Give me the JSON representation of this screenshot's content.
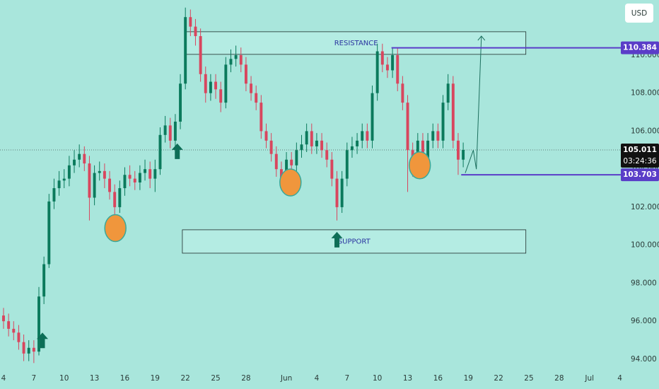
{
  "chart_data": {
    "type": "candlestick",
    "currency": "USD",
    "x": [
      0,
      0.5,
      1,
      1.5,
      2,
      2.5,
      3,
      3.5,
      4,
      4.5,
      5,
      5.5,
      6,
      6.5,
      7,
      7.5,
      8,
      8.5,
      9,
      9.5,
      10,
      10.5,
      11,
      11.5,
      12,
      12.5,
      13,
      13.5,
      14,
      14.5,
      15,
      15.5,
      16,
      16.5,
      17,
      17.5,
      18,
      18.5,
      19,
      19.5,
      20,
      20.5,
      21,
      21.5,
      22,
      22.5,
      23,
      23.5,
      24,
      24.5,
      25,
      25.5,
      26,
      26.5,
      27,
      27.5,
      28,
      28.5,
      29,
      29.5,
      30,
      30.5,
      31,
      31.5,
      32,
      32.5,
      33,
      33.5,
      34,
      34.5,
      35,
      35.5,
      36,
      36.5,
      37,
      37.5,
      38,
      38.5,
      39,
      39.5,
      40,
      40.5,
      41,
      41.5,
      42,
      42.5,
      43,
      43.5,
      44,
      44.5,
      45,
      45.5
    ],
    "open": [
      96.3,
      96.0,
      95.6,
      95.4,
      94.9,
      94.3,
      94.6,
      94.4,
      97.3,
      99.0,
      102.3,
      103.0,
      103.4,
      103.5,
      104.2,
      104.5,
      104.8,
      104.3,
      102.5,
      103.8,
      103.9,
      103.5,
      102.8,
      102.0,
      103.0,
      103.7,
      103.5,
      103.3,
      103.8,
      104.0,
      103.5,
      104.0,
      105.8,
      106.3,
      105.5,
      106.5,
      108.5,
      112.0,
      111.5,
      111.0,
      109.0,
      108.0,
      108.6,
      108.2,
      107.5,
      109.5,
      109.8,
      110.0,
      109.5,
      108.5,
      108.0,
      107.5,
      106.0,
      105.5,
      104.8,
      104.0,
      103.5,
      104.5,
      104.2,
      105.0,
      105.3,
      106.0,
      105.2,
      105.5,
      105.0,
      104.5,
      103.5,
      102.0,
      103.5,
      105.0,
      105.2,
      105.5,
      106.0,
      105.5,
      108.0,
      110.2,
      109.5,
      109.2,
      110.0,
      108.5,
      107.5,
      105.0,
      104.0,
      105.5,
      104.5,
      105.5,
      106.0,
      105.5,
      107.5,
      108.5,
      105.5,
      104.5
    ],
    "high": [
      96.7,
      96.4,
      96.0,
      95.8,
      95.3,
      95.0,
      95.0,
      97.8,
      99.4,
      102.7,
      103.5,
      103.9,
      104.0,
      104.7,
      105.0,
      105.3,
      105.2,
      104.7,
      104.2,
      104.4,
      104.3,
      103.9,
      103.2,
      103.4,
      104.1,
      104.2,
      103.9,
      104.2,
      104.5,
      104.4,
      104.5,
      106.2,
      106.8,
      106.7,
      106.9,
      109.0,
      112.5,
      112.4,
      111.9,
      111.4,
      109.4,
      109.0,
      109.0,
      108.6,
      109.9,
      110.3,
      110.5,
      110.4,
      109.9,
      108.9,
      108.4,
      107.9,
      106.4,
      105.9,
      105.2,
      104.4,
      104.9,
      104.9,
      105.4,
      105.8,
      106.4,
      106.4,
      105.9,
      105.9,
      105.4,
      104.9,
      103.9,
      103.9,
      105.4,
      105.7,
      105.9,
      106.4,
      106.4,
      108.4,
      110.6,
      110.6,
      109.9,
      110.4,
      110.4,
      108.9,
      107.9,
      105.4,
      105.9,
      105.9,
      105.9,
      106.4,
      106.4,
      107.9,
      109.0,
      108.9,
      105.9,
      105.4
    ],
    "low": [
      95.6,
      95.2,
      95.0,
      94.5,
      93.9,
      93.9,
      93.8,
      94.2,
      96.9,
      98.8,
      101.9,
      102.6,
      103.0,
      103.1,
      103.8,
      104.1,
      103.9,
      101.3,
      102.1,
      103.4,
      103.0,
      102.4,
      101.3,
      101.7,
      102.6,
      103.1,
      102.9,
      102.9,
      103.4,
      103.0,
      102.8,
      103.7,
      105.4,
      105.1,
      105.1,
      106.1,
      108.2,
      111.0,
      110.5,
      108.6,
      107.5,
      107.6,
      107.7,
      107.0,
      107.2,
      109.1,
      109.4,
      109.1,
      108.1,
      107.6,
      107.1,
      105.6,
      105.1,
      104.4,
      103.6,
      103.0,
      103.1,
      103.8,
      103.8,
      104.6,
      104.9,
      104.8,
      104.8,
      104.6,
      104.1,
      103.1,
      101.3,
      101.7,
      103.1,
      104.6,
      104.8,
      105.1,
      105.1,
      105.1,
      107.6,
      109.1,
      108.8,
      108.8,
      108.1,
      107.1,
      102.8,
      103.6,
      103.6,
      104.1,
      104.1,
      105.1,
      105.1,
      105.1,
      107.1,
      105.1,
      103.7,
      104.1
    ],
    "close": [
      96.0,
      95.6,
      95.4,
      94.9,
      94.3,
      94.6,
      94.4,
      97.3,
      99.0,
      102.3,
      103.0,
      103.4,
      103.5,
      104.2,
      104.5,
      104.8,
      104.3,
      102.5,
      103.8,
      103.9,
      103.5,
      102.8,
      102.0,
      103.0,
      103.7,
      103.5,
      103.3,
      103.8,
      104.0,
      103.5,
      104.0,
      105.8,
      106.3,
      105.5,
      106.5,
      108.5,
      112.0,
      111.5,
      111.0,
      109.0,
      108.0,
      108.6,
      108.2,
      107.5,
      109.5,
      109.8,
      110.0,
      109.5,
      108.5,
      108.0,
      107.5,
      106.0,
      105.5,
      104.8,
      104.0,
      103.5,
      104.5,
      104.2,
      105.0,
      105.3,
      106.0,
      105.2,
      105.5,
      105.0,
      104.5,
      103.5,
      102.0,
      103.5,
      105.0,
      105.2,
      105.5,
      106.0,
      105.5,
      108.0,
      110.2,
      109.5,
      109.2,
      110.0,
      108.5,
      107.5,
      105.0,
      104.0,
      105.5,
      104.5,
      105.5,
      106.0,
      105.5,
      107.5,
      108.5,
      105.5,
      104.5,
      105.011
    ],
    "up_color": "#0b7a5c",
    "down_color": "#d8465e",
    "xlim": [
      -0.35,
      61.1
    ],
    "xticks": [
      {
        "value": 0,
        "label": "4"
      },
      {
        "value": 3,
        "label": "7"
      },
      {
        "value": 6,
        "label": "10"
      },
      {
        "value": 9,
        "label": "13"
      },
      {
        "value": 12,
        "label": "16"
      },
      {
        "value": 15,
        "label": "19"
      },
      {
        "value": 18,
        "label": "22"
      },
      {
        "value": 21,
        "label": "25"
      },
      {
        "value": 24,
        "label": "28"
      },
      {
        "value": 28,
        "label": "Jun"
      },
      {
        "value": 31,
        "label": "4"
      },
      {
        "value": 34,
        "label": "7"
      },
      {
        "value": 37,
        "label": "10"
      },
      {
        "value": 40,
        "label": "13"
      },
      {
        "value": 43,
        "label": "16"
      },
      {
        "value": 46,
        "label": "19"
      },
      {
        "value": 49,
        "label": "22"
      },
      {
        "value": 52,
        "label": "25"
      },
      {
        "value": 55,
        "label": "28"
      },
      {
        "value": 58,
        "label": "Jul"
      },
      {
        "value": 61,
        "label": "4"
      }
    ],
    "ylim": [
      93.55,
      112.9
    ],
    "yticks": [
      {
        "value": 94,
        "label": "94.000"
      },
      {
        "value": 96,
        "label": "96.000"
      },
      {
        "value": 98,
        "label": "98.000"
      },
      {
        "value": 100,
        "label": "100.000"
      },
      {
        "value": 102,
        "label": "102.000"
      },
      {
        "value": 104,
        "label": "104.000"
      },
      {
        "value": 106,
        "label": "106.000"
      },
      {
        "value": 108,
        "label": "108.000"
      },
      {
        "value": 110,
        "label": "110.000"
      }
    ],
    "last_price": 105.011,
    "countdown": "03:24:36",
    "levels": [
      {
        "value": 110.384,
        "from": 38.4,
        "color": "#5a3dc8"
      },
      {
        "value": 103.703,
        "from": 45.3,
        "color": "#5a3dc8"
      }
    ],
    "zones": [
      {
        "label": "RESISTANCE",
        "x": [
          18.1,
          51.7
        ],
        "y": [
          110.04,
          111.23
        ]
      },
      {
        "label": "SUPPORT",
        "x": [
          17.7,
          51.7
        ],
        "y": [
          99.58,
          100.81
        ]
      }
    ],
    "circles": {
      "color": "#f0963c",
      "x": [
        11.07,
        28.4,
        41.2
      ],
      "y": [
        100.9,
        103.3,
        104.2
      ]
    },
    "arrows": {
      "color": "#0d6e57",
      "x": [
        3.85,
        17.2,
        33.0
      ],
      "y": [
        95.4,
        105.35,
        100.7
      ]
    },
    "projection": {
      "color": "#1d6f5e",
      "x": [
        45.7,
        46.5,
        46.8,
        47.3
      ],
      "y": [
        103.8,
        105.0,
        104.0,
        111.0
      ]
    }
  }
}
